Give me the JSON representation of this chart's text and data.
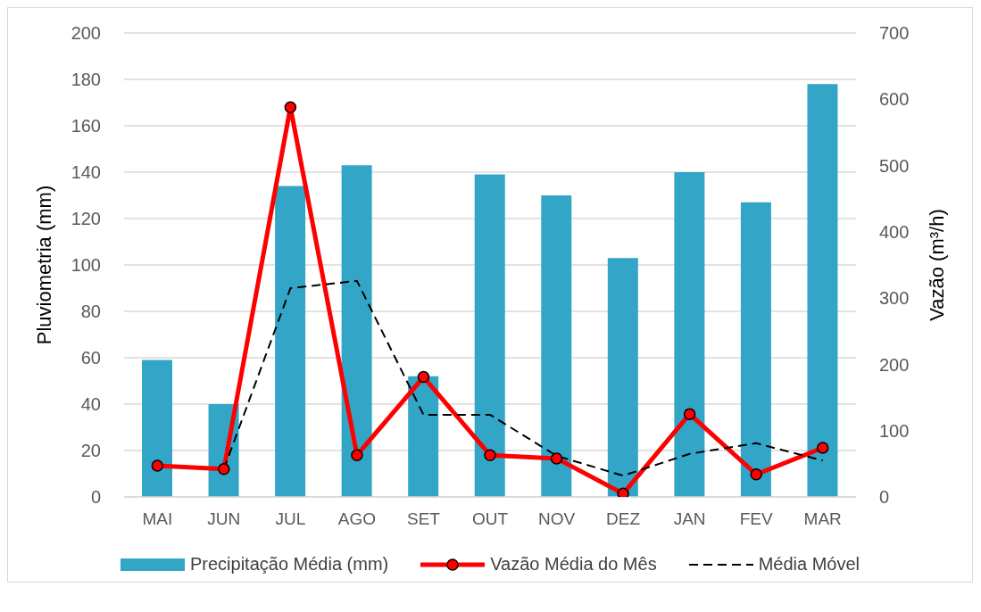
{
  "chart_data": {
    "type": "bar",
    "categories": [
      "MAI",
      "JUN",
      "JUL",
      "AGO",
      "SET",
      "OUT",
      "NOV",
      "DEZ",
      "JAN",
      "FEV",
      "MAR"
    ],
    "ylabel": "Pluviometria (mm)",
    "y2label": "Vazão (m³/h)",
    "ylim": [
      0,
      200
    ],
    "yticks": [
      0,
      20,
      40,
      60,
      80,
      100,
      120,
      140,
      160,
      180,
      200
    ],
    "y2lim": [
      0,
      700
    ],
    "y2ticks": [
      0,
      100,
      200,
      300,
      400,
      500,
      600,
      700
    ],
    "grid": "y",
    "legend": "bottom",
    "series": [
      {
        "name": "Precipitação Média (mm)",
        "color": "#33a6c8",
        "values": [
          59,
          40,
          134,
          143,
          52,
          139,
          130,
          103,
          140,
          127,
          178
        ]
      },
      {
        "name": "Vazão Média do Mês",
        "type": "line",
        "axis": "y2",
        "color": "#ff0000",
        "marker": "circle",
        "line_style": "solid",
        "values": [
          47,
          42,
          588,
          63,
          181,
          63,
          58,
          5,
          125,
          34,
          74
        ]
      },
      {
        "name": "Média Móvel",
        "type": "line",
        "axis": "y2",
        "color": "#000000",
        "marker": "none",
        "line_style": "dashed",
        "values": [
          null,
          42,
          315,
          326,
          124,
          124,
          62,
          32,
          65,
          81,
          55
        ]
      }
    ]
  }
}
